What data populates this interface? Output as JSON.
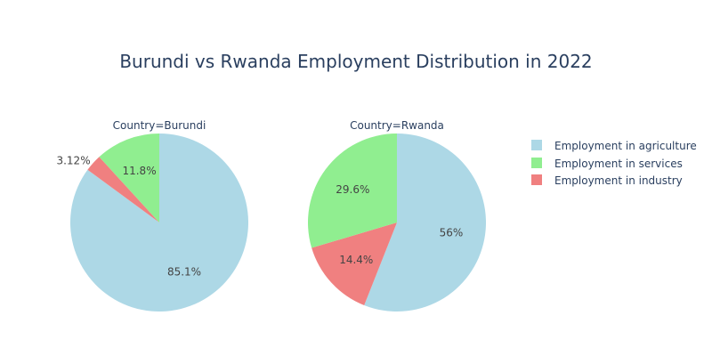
{
  "chart_data": {
    "type": "pie",
    "title": "Burundi vs Rwanda Employment Distribution in 2022",
    "legend": {
      "placement": "right",
      "entries": [
        {
          "name": "Employment in agriculture",
          "color": "#add8e6"
        },
        {
          "name": "Employment in services",
          "color": "#90ee90"
        },
        {
          "name": "Employment in industry",
          "color": "#f08080"
        }
      ]
    },
    "pies": [
      {
        "label": "Country=Burundi",
        "slices": [
          {
            "name": "Employment in agriculture",
            "value": 85.1,
            "text": "85.1%",
            "color": "#add8e6"
          },
          {
            "name": "Employment in industry",
            "value": 3.12,
            "text": "3.12%",
            "color": "#f08080"
          },
          {
            "name": "Employment in services",
            "value": 11.8,
            "text": "11.8%",
            "color": "#90ee90"
          }
        ]
      },
      {
        "label": "Country=Rwanda",
        "slices": [
          {
            "name": "Employment in agriculture",
            "value": 56,
            "text": "56%",
            "color": "#add8e6"
          },
          {
            "name": "Employment in industry",
            "value": 14.4,
            "text": "14.4%",
            "color": "#f08080"
          },
          {
            "name": "Employment in services",
            "value": 29.6,
            "text": "29.6%",
            "color": "#90ee90"
          }
        ]
      }
    ]
  }
}
